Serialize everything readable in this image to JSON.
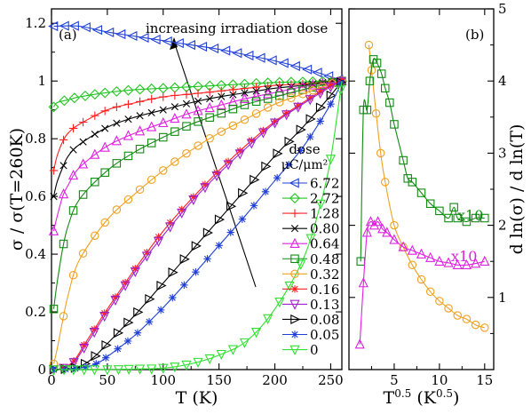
{
  "chart_data": [
    {
      "type": "line",
      "panel_label": "(a)",
      "xlabel": "T (K)",
      "ylabel": "σ / σ(T=260K)",
      "xlim": [
        0,
        260
      ],
      "ylim": [
        0,
        1.25
      ],
      "xticks": [
        0,
        50,
        100,
        150,
        200,
        250
      ],
      "yticks": [
        0,
        0.2,
        0.4,
        0.6,
        0.8,
        1,
        1.2
      ],
      "legend_title": "dose",
      "legend_unit": "μC/μm²",
      "legend_position": "right",
      "annotation": "increasing irradiation dose",
      "series": [
        {
          "name": "6.72",
          "color": "#1f3fd6",
          "marker": "tri-left",
          "points": [
            [
              2,
              1.19
            ],
            [
              25,
              1.19
            ],
            [
              50,
              1.17
            ],
            [
              75,
              1.155
            ],
            [
              100,
              1.14
            ],
            [
              125,
              1.125
            ],
            [
              150,
              1.11
            ],
            [
              175,
              1.09
            ],
            [
              200,
              1.07
            ],
            [
              225,
              1.045
            ],
            [
              250,
              1.015
            ],
            [
              260,
              1.0
            ]
          ]
        },
        {
          "name": "2.72",
          "color": "#22c422",
          "marker": "diamond",
          "points": [
            [
              2,
              0.91
            ],
            [
              5,
              0.925
            ],
            [
              15,
              0.935
            ],
            [
              25,
              0.945
            ],
            [
              50,
              0.96
            ],
            [
              75,
              0.97
            ],
            [
              100,
              0.975
            ],
            [
              125,
              0.98
            ],
            [
              150,
              0.985
            ],
            [
              175,
              0.99
            ],
            [
              200,
              0.995
            ],
            [
              225,
              0.997
            ],
            [
              250,
              0.999
            ],
            [
              260,
              1.0
            ]
          ]
        },
        {
          "name": "1.28",
          "color": "#ff2020",
          "marker": "plus",
          "points": [
            [
              2,
              0.69
            ],
            [
              5,
              0.74
            ],
            [
              10,
              0.79
            ],
            [
              15,
              0.82
            ],
            [
              25,
              0.85
            ],
            [
              50,
              0.9
            ],
            [
              75,
              0.925
            ],
            [
              100,
              0.945
            ],
            [
              125,
              0.955
            ],
            [
              150,
              0.965
            ],
            [
              175,
              0.975
            ],
            [
              200,
              0.985
            ],
            [
              225,
              0.99
            ],
            [
              250,
              0.998
            ],
            [
              260,
              1.0
            ]
          ]
        },
        {
          "name": "0.80",
          "color": "#000000",
          "marker": "x",
          "points": [
            [
              2,
              0.6
            ],
            [
              5,
              0.65
            ],
            [
              10,
              0.7
            ],
            [
              15,
              0.74
            ],
            [
              25,
              0.78
            ],
            [
              50,
              0.84
            ],
            [
              75,
              0.875
            ],
            [
              100,
              0.9
            ],
            [
              125,
              0.925
            ],
            [
              150,
              0.945
            ],
            [
              175,
              0.96
            ],
            [
              200,
              0.975
            ],
            [
              225,
              0.985
            ],
            [
              250,
              0.998
            ],
            [
              260,
              1.0
            ]
          ]
        },
        {
          "name": "0.64",
          "color": "#e020e0",
          "marker": "triangle-up",
          "points": [
            [
              2,
              0.48
            ],
            [
              5,
              0.53
            ],
            [
              10,
              0.6
            ],
            [
              15,
              0.64
            ],
            [
              25,
              0.7
            ],
            [
              50,
              0.775
            ],
            [
              75,
              0.82
            ],
            [
              100,
              0.855
            ],
            [
              125,
              0.89
            ],
            [
              150,
              0.915
            ],
            [
              175,
              0.94
            ],
            [
              200,
              0.96
            ],
            [
              225,
              0.98
            ],
            [
              250,
              0.995
            ],
            [
              260,
              1.0
            ]
          ]
        },
        {
          "name": "0.48",
          "color": "#108a10",
          "marker": "square",
          "points": [
            [
              2,
              0.21
            ],
            [
              5,
              0.3
            ],
            [
              10,
              0.42
            ],
            [
              15,
              0.5
            ],
            [
              25,
              0.59
            ],
            [
              50,
              0.69
            ],
            [
              75,
              0.755
            ],
            [
              100,
              0.805
            ],
            [
              125,
              0.85
            ],
            [
              150,
              0.885
            ],
            [
              175,
              0.92
            ],
            [
              200,
              0.945
            ],
            [
              225,
              0.97
            ],
            [
              250,
              0.993
            ],
            [
              260,
              1.0
            ]
          ]
        },
        {
          "name": "0.32",
          "color": "#f0a020",
          "marker": "circle",
          "points": [
            [
              2,
              0.02
            ],
            [
              5,
              0.07
            ],
            [
              10,
              0.17
            ],
            [
              15,
              0.26
            ],
            [
              25,
              0.38
            ],
            [
              50,
              0.52
            ],
            [
              75,
              0.61
            ],
            [
              100,
              0.69
            ],
            [
              125,
              0.76
            ],
            [
              150,
              0.82
            ],
            [
              175,
              0.87
            ],
            [
              200,
              0.92
            ],
            [
              225,
              0.955
            ],
            [
              250,
              0.99
            ],
            [
              260,
              1.0
            ]
          ]
        },
        {
          "name": "0.16",
          "color": "#ff2020",
          "marker": "asterisk",
          "points": [
            [
              2,
              0.0
            ],
            [
              10,
              0.005
            ],
            [
              20,
              0.03
            ],
            [
              30,
              0.09
            ],
            [
              40,
              0.15
            ],
            [
              50,
              0.21
            ],
            [
              75,
              0.35
            ],
            [
              100,
              0.48
            ],
            [
              125,
              0.59
            ],
            [
              150,
              0.69
            ],
            [
              175,
              0.78
            ],
            [
              200,
              0.86
            ],
            [
              225,
              0.925
            ],
            [
              250,
              0.985
            ],
            [
              260,
              1.0
            ]
          ]
        },
        {
          "name": "0.13",
          "color": "#a020d0",
          "marker": "triangle-down",
          "points": [
            [
              2,
              0.0
            ],
            [
              10,
              0.004
            ],
            [
              20,
              0.025
            ],
            [
              30,
              0.08
            ],
            [
              40,
              0.14
            ],
            [
              50,
              0.2
            ],
            [
              75,
              0.34
            ],
            [
              100,
              0.465
            ],
            [
              125,
              0.58
            ],
            [
              150,
              0.68
            ],
            [
              175,
              0.77
            ],
            [
              200,
              0.855
            ],
            [
              225,
              0.92
            ],
            [
              250,
              0.98
            ],
            [
              260,
              1.0
            ]
          ]
        },
        {
          "name": "0.08",
          "color": "#000000",
          "marker": "tri-right",
          "points": [
            [
              2,
              0.0
            ],
            [
              20,
              0.005
            ],
            [
              30,
              0.02
            ],
            [
              40,
              0.05
            ],
            [
              50,
              0.09
            ],
            [
              75,
              0.19
            ],
            [
              100,
              0.3
            ],
            [
              125,
              0.41
            ],
            [
              150,
              0.52
            ],
            [
              175,
              0.63
            ],
            [
              200,
              0.74
            ],
            [
              225,
              0.84
            ],
            [
              250,
              0.95
            ],
            [
              260,
              1.0
            ]
          ]
        },
        {
          "name": "0.05",
          "color": "#1f3fd6",
          "marker": "asterisk",
          "points": [
            [
              2,
              0.0
            ],
            [
              25,
              0.005
            ],
            [
              40,
              0.02
            ],
            [
              50,
              0.045
            ],
            [
              75,
              0.12
            ],
            [
              100,
              0.215
            ],
            [
              125,
              0.32
            ],
            [
              150,
              0.43
            ],
            [
              175,
              0.54
            ],
            [
              200,
              0.655
            ],
            [
              225,
              0.77
            ],
            [
              250,
              0.92
            ],
            [
              260,
              1.0
            ]
          ]
        },
        {
          "name": "0",
          "color": "#30e030",
          "marker": "triangle-down",
          "points": [
            [
              2,
              0.0
            ],
            [
              50,
              0.0
            ],
            [
              75,
              0.002
            ],
            [
              100,
              0.005
            ],
            [
              125,
              0.02
            ],
            [
              150,
              0.05
            ],
            [
              175,
              0.1
            ],
            [
              200,
              0.21
            ],
            [
              225,
              0.38
            ],
            [
              240,
              0.56
            ],
            [
              250,
              0.73
            ],
            [
              260,
              1.0
            ]
          ]
        }
      ]
    },
    {
      "type": "line",
      "panel_label": "(b)",
      "xlabel": "T^0.5 (K^0.5)",
      "ylabel": "d ln(σ) / d ln(T)",
      "xlim": [
        0,
        16
      ],
      "ylim": [
        0,
        5
      ],
      "xticks": [
        5,
        10,
        15
      ],
      "yticks": [
        1,
        2,
        3,
        4,
        5
      ],
      "annotations": [
        {
          "text": "x10",
          "color": "#108a10"
        },
        {
          "text": "x10",
          "color": "#e020e0"
        }
      ],
      "series": [
        {
          "name": "0.32",
          "color": "#f0a020",
          "marker": "circle",
          "points": [
            [
              2.2,
              4.5
            ],
            [
              2.5,
              4.15
            ],
            [
              3,
              3.55
            ],
            [
              3.5,
              3.0
            ],
            [
              4,
              2.6
            ],
            [
              5,
              2.0
            ],
            [
              6,
              1.7
            ],
            [
              7,
              1.45
            ],
            [
              8,
              1.25
            ],
            [
              9,
              1.08
            ],
            [
              10,
              0.95
            ],
            [
              11,
              0.85
            ],
            [
              12,
              0.75
            ],
            [
              13,
              0.7
            ],
            [
              14,
              0.62
            ],
            [
              15,
              0.58
            ]
          ]
        },
        {
          "name": "0.48 (x10)",
          "color": "#108a10",
          "marker": "square",
          "points": [
            [
              1.3,
              1.5
            ],
            [
              1.6,
              3.6
            ],
            [
              2.0,
              3.6
            ],
            [
              2.3,
              4.0
            ],
            [
              2.7,
              4.3
            ],
            [
              3.1,
              4.25
            ],
            [
              3.6,
              4.1
            ],
            [
              4.0,
              3.9
            ],
            [
              4.5,
              3.7
            ],
            [
              5,
              3.4
            ],
            [
              6,
              2.9
            ],
            [
              6.5,
              2.65
            ],
            [
              7,
              2.6
            ],
            [
              8,
              2.45
            ],
            [
              9,
              2.3
            ],
            [
              10,
              2.2
            ],
            [
              11,
              2.1
            ],
            [
              11.6,
              2.25
            ],
            [
              12,
              2.1
            ],
            [
              13,
              2.05
            ],
            [
              14,
              2.1
            ],
            [
              15,
              2.1
            ]
          ]
        },
        {
          "name": "0.64 (x10)",
          "color": "#e020e0",
          "marker": "triangle-up",
          "points": [
            [
              1.2,
              0.35
            ],
            [
              1.6,
              1.2
            ],
            [
              2.0,
              1.9
            ],
            [
              2.4,
              2.05
            ],
            [
              2.8,
              2.0
            ],
            [
              3.2,
              2.05
            ],
            [
              3.7,
              1.95
            ],
            [
              4.2,
              1.9
            ],
            [
              5,
              1.8
            ],
            [
              6,
              1.7
            ],
            [
              7,
              1.65
            ],
            [
              8,
              1.6
            ],
            [
              9,
              1.55
            ],
            [
              10,
              1.5
            ],
            [
              11,
              1.48
            ],
            [
              12,
              1.45
            ],
            [
              13,
              1.45
            ],
            [
              14,
              1.47
            ],
            [
              15,
              1.5
            ]
          ]
        }
      ]
    }
  ]
}
